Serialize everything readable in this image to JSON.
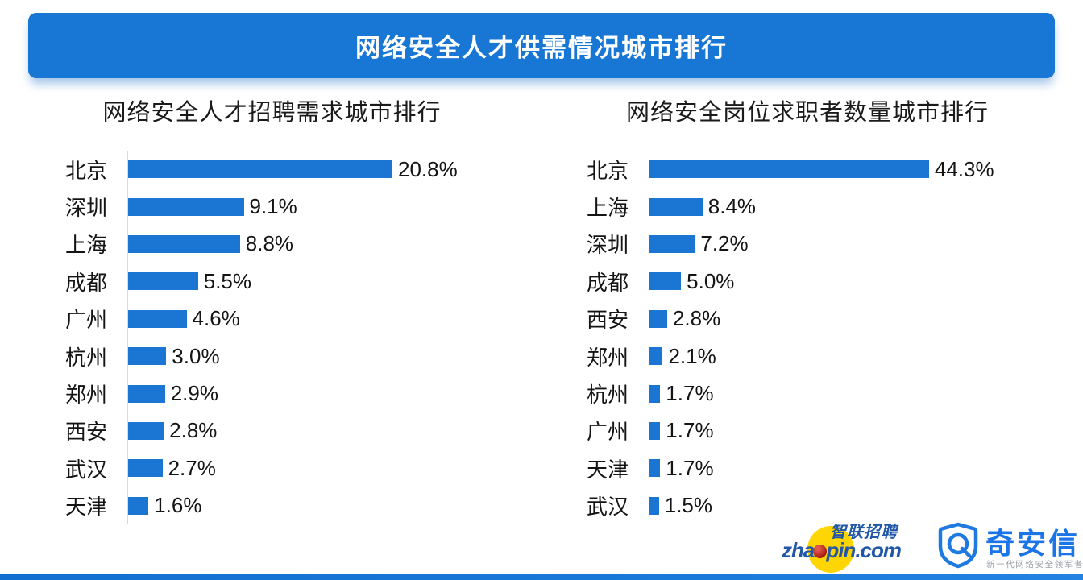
{
  "header": {
    "title": "网络安全人才供需情况城市排行"
  },
  "chart_data": [
    {
      "type": "bar",
      "orientation": "horizontal",
      "title": "网络安全人才招聘需求城市排行",
      "categories": [
        "北京",
        "深圳",
        "上海",
        "成都",
        "广州",
        "杭州",
        "郑州",
        "西安",
        "武汉",
        "天津"
      ],
      "values": [
        20.8,
        9.1,
        8.8,
        5.5,
        4.6,
        3.0,
        2.9,
        2.8,
        2.7,
        1.6
      ],
      "value_labels": [
        "20.8%",
        "9.1%",
        "8.8%",
        "5.5%",
        "4.6%",
        "3.0%",
        "2.9%",
        "2.8%",
        "2.7%",
        "1.6%"
      ],
      "unit": "%",
      "xlim": [
        0,
        24
      ],
      "grid": false,
      "legend": "none",
      "bar_color": "#1B75D2"
    },
    {
      "type": "bar",
      "orientation": "horizontal",
      "title": "网络安全岗位求职者数量城市排行",
      "categories": [
        "北京",
        "上海",
        "深圳",
        "成都",
        "西安",
        "郑州",
        "杭州",
        "广州",
        "天津",
        "武汉"
      ],
      "values": [
        44.3,
        8.4,
        7.2,
        5.0,
        2.8,
        2.1,
        1.7,
        1.7,
        1.7,
        1.5
      ],
      "value_labels": [
        "44.3%",
        "8.4%",
        "7.2%",
        "5.0%",
        "2.8%",
        "2.1%",
        "1.7%",
        "1.7%",
        "1.7%",
        "1.5%"
      ],
      "unit": "%",
      "xlim": [
        0,
        50
      ],
      "grid": false,
      "legend": "none",
      "bar_color": "#1B75D2"
    }
  ],
  "footer": {
    "zhaopin": {
      "cn_text": "智联招聘",
      "domain_prefix": "zha",
      "domain_suffix": "pin.com"
    },
    "qianxin": {
      "name": "奇安信",
      "tagline": "新一代网络安全领军者"
    }
  },
  "colors": {
    "bar_blue": "#1B75D2",
    "banner_blue": "#1877D4",
    "axis_gray": "#D9D9D9",
    "strip_blue": "#1878D8",
    "zhaopin_blue": "#2157A8",
    "zhaopin_yellow": "#FFD503",
    "zhaopin_red": "#A81812",
    "qianxin_blue": "#1B74E8",
    "tagline_gray": "#9AA0A6"
  }
}
